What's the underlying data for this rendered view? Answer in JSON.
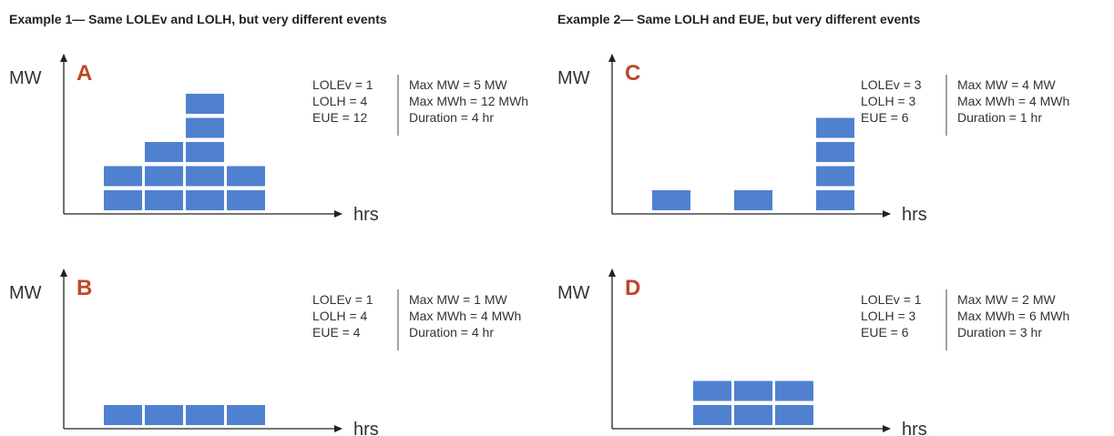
{
  "examples": [
    {
      "title": "Example 1— Same LOLEv and LOLH, but very different events",
      "panels": [
        {
          "letter": "A",
          "y_label": "MW",
          "x_label": "hrs",
          "stats": [
            "LOLEv = 1",
            "LOLH = 4",
            "EUE = 12"
          ],
          "details": [
            "Max MW = 5 MW",
            "Max MWh = 12 MWh",
            "Duration = 4 hr"
          ],
          "columns": [
            2,
            3,
            5,
            2
          ]
        },
        {
          "letter": "B",
          "y_label": "MW",
          "x_label": "hrs",
          "stats": [
            "LOLEv = 1",
            "LOLH = 4",
            "EUE = 4"
          ],
          "details": [
            "Max MW = 1 MW",
            "Max MWh = 4 MWh",
            "Duration = 4 hr"
          ],
          "columns": [
            1,
            1,
            1,
            1
          ]
        }
      ]
    },
    {
      "title": "Example 2— Same LOLH and EUE, but very different events",
      "panels": [
        {
          "letter": "C",
          "y_label": "MW",
          "x_label": "hrs",
          "stats": [
            "LOLEv = 3",
            "LOLH = 3",
            "EUE = 6"
          ],
          "details": [
            "Max MW = 4 MW",
            "Max MWh = 4 MWh",
            "Duration = 1 hr"
          ],
          "columns": [
            1,
            0,
            1,
            0,
            4
          ]
        },
        {
          "letter": "D",
          "y_label": "MW",
          "x_label": "hrs",
          "stats": [
            "LOLEv = 1",
            "LOLH = 3",
            "EUE = 6"
          ],
          "details": [
            "Max MW = 2 MW",
            "Max MWh = 6 MWh",
            "Duration = 3 hr"
          ],
          "columns": [
            0,
            2,
            2,
            2
          ]
        }
      ]
    }
  ]
}
